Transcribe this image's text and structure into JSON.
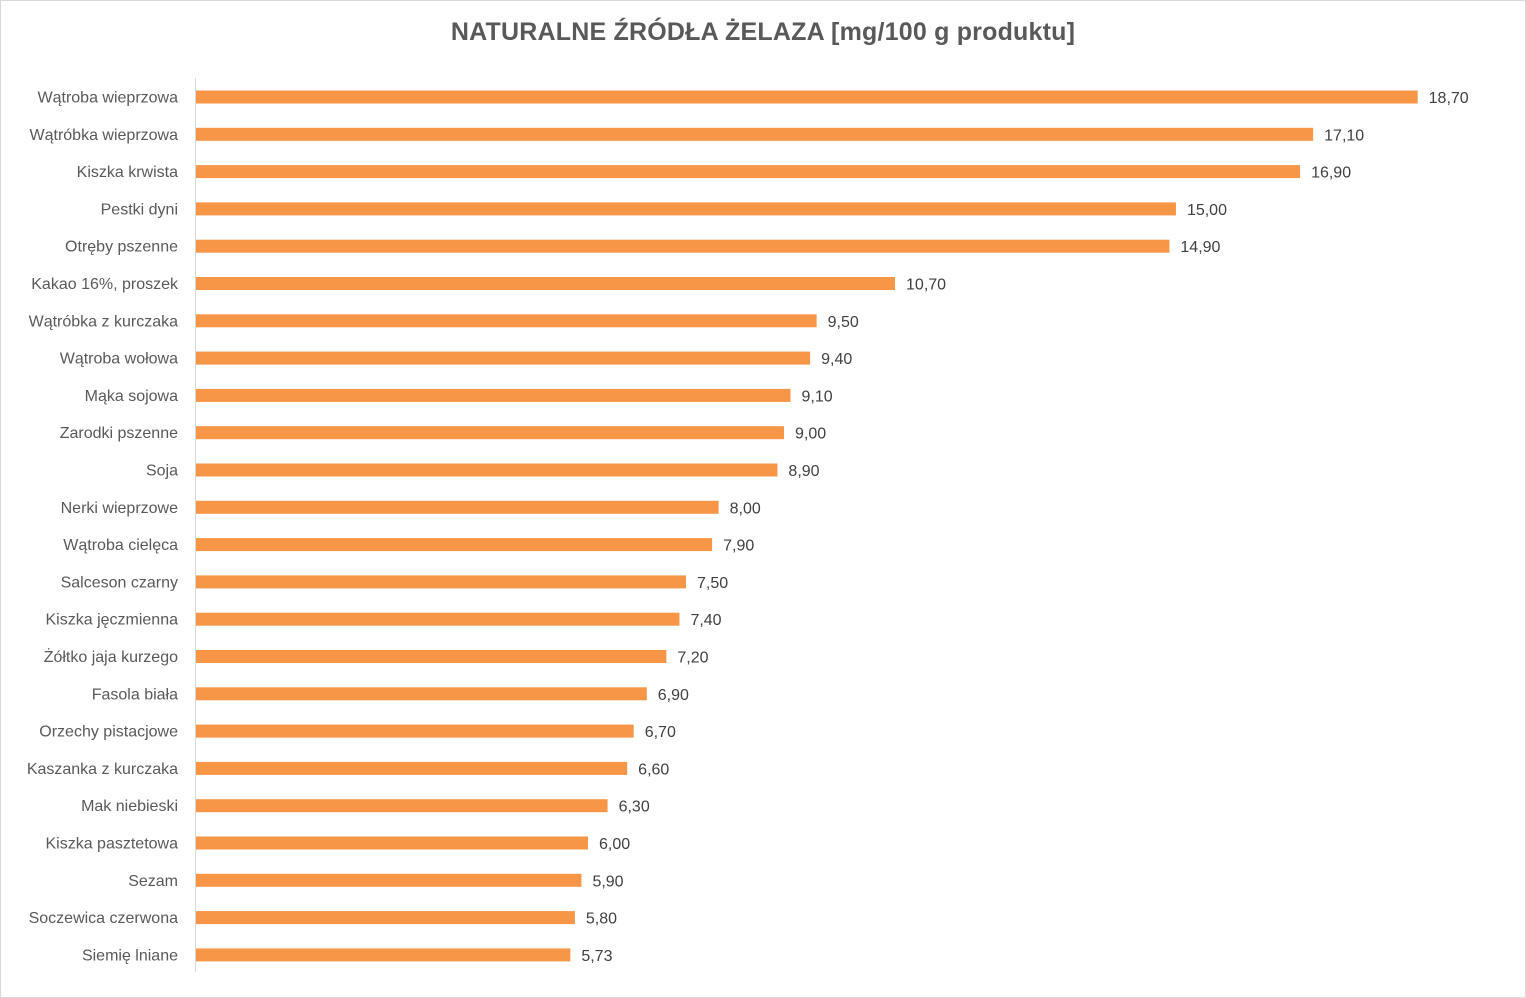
{
  "chart_data": {
    "type": "bar",
    "orientation": "horizontal",
    "title": "NATURALNE ŹRÓDŁA ŻELAZA [mg/100 g produktu]",
    "xlabel": "",
    "ylabel": "",
    "xlim": [
      0,
      20
    ],
    "grid": false,
    "legend": "none",
    "bar_color": "#F79646",
    "categories": [
      "Wątroba wieprzowa",
      "Wątróbka wieprzowa",
      "Kiszka krwista",
      "Pestki dyni",
      "Otręby pszenne",
      "Kakao 16%, proszek",
      "Wątróbka  z kurczaka",
      "Wątroba wołowa",
      "Mąka sojowa",
      "Zarodki pszenne",
      "Soja",
      "Nerki wieprzowe",
      "Wątroba cielęca",
      "Salceson czarny",
      "Kiszka jęczmienna",
      "Żółtko jaja kurzego",
      "Fasola biała",
      "Orzechy pistacjowe",
      "Kaszanka z kurczaka",
      "Mak niebieski",
      "Kiszka pasztetowa",
      "Sezam",
      "Soczewica czerwona",
      "Siemię lniane"
    ],
    "values": [
      18.7,
      17.1,
      16.9,
      15.0,
      14.9,
      10.7,
      9.5,
      9.4,
      9.1,
      9.0,
      8.9,
      8.0,
      7.9,
      7.5,
      7.4,
      7.2,
      6.9,
      6.7,
      6.6,
      6.3,
      6.0,
      5.9,
      5.8,
      5.73
    ],
    "value_labels": [
      "18,70",
      "17,10",
      "16,90",
      "15,00",
      "14,90",
      "10,70",
      "9,50",
      "9,40",
      "9,10",
      "9,00",
      "8,90",
      "8,00",
      "7,90",
      "7,50",
      "7,40",
      "7,20",
      "6,90",
      "6,70",
      "6,60",
      "6,30",
      "6,00",
      "5,90",
      "5,80",
      "5,73"
    ]
  }
}
